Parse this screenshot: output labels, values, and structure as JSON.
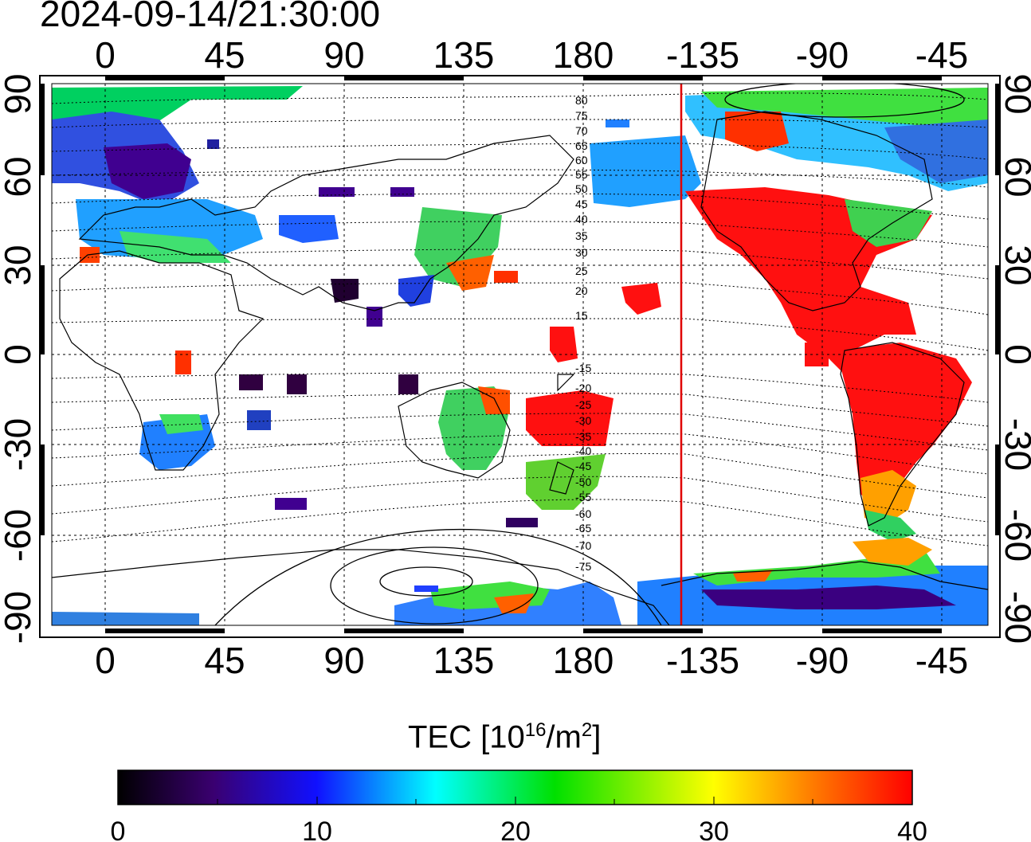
{
  "title": "2024-09-14/21:30:00",
  "map": {
    "top_lon_labels": [
      "0",
      "45",
      "90",
      "135",
      "180",
      "-135",
      "-90",
      "-45"
    ],
    "bottom_lon_labels": [
      "0",
      "45",
      "90",
      "135",
      "180",
      "-135",
      "-90",
      "-45"
    ],
    "left_lat_labels": [
      "90",
      "60",
      "30",
      "0",
      "-30",
      "-60",
      "-90"
    ],
    "right_lat_labels": [
      "90",
      "60",
      "30",
      "0",
      "-30",
      "-60",
      "-90"
    ],
    "contour_labels": [
      "80",
      "75",
      "70",
      "65",
      "60",
      "55",
      "50",
      "45",
      "40",
      "35",
      "30",
      "25",
      "20",
      "15",
      "-15",
      "-20",
      "-25",
      "-30",
      "-35",
      "-40",
      "-45",
      "-50",
      "-55",
      "-60",
      "-65",
      "-70",
      "-75"
    ],
    "terminator_longitude": -140,
    "terminator_color": "#e00000"
  },
  "colorbar": {
    "label_text": "TEC  [10",
    "label_exp": "16",
    "label_unit": "/m",
    "label_unit_exp": "2",
    "label_close": "]",
    "ticks": [
      "0",
      "10",
      "20",
      "30",
      "40"
    ],
    "min": 0,
    "max": 40,
    "colors": [
      "#000000",
      "#3a0070",
      "#1010ff",
      "#00ffff",
      "#00e000",
      "#ffff00",
      "#ff8000",
      "#ff0000"
    ]
  }
}
